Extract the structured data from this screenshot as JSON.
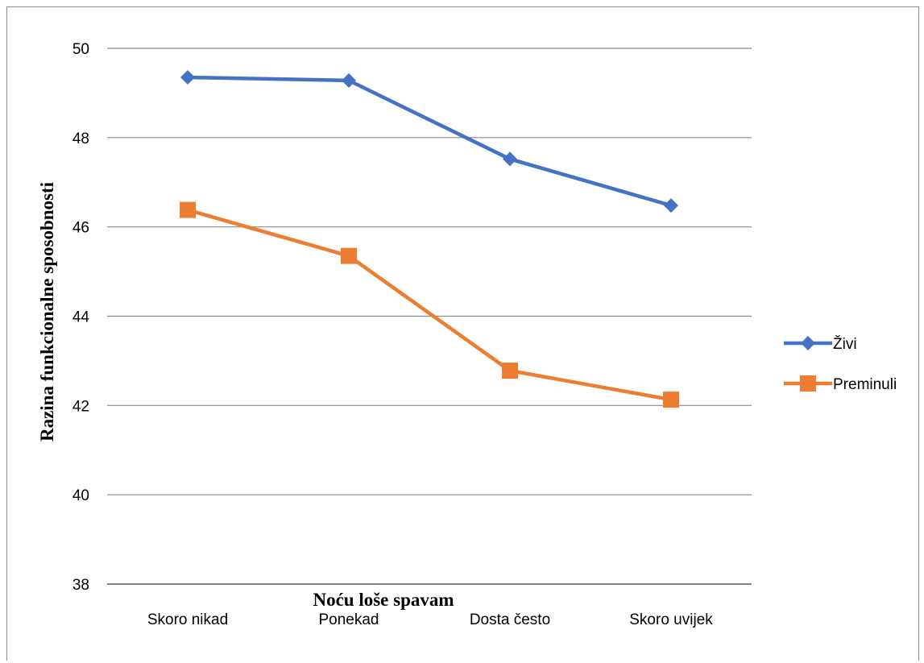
{
  "chart_data": {
    "type": "line",
    "title": "",
    "xlabel": "Noću loše spavam",
    "ylabel": "Razina funkcionalne sposobnosti",
    "categories": [
      "Skoro nikad",
      "Ponekad",
      "Dosta često",
      "Skoro uvijek"
    ],
    "ylim": [
      38,
      50
    ],
    "yticks": [
      38,
      40,
      42,
      44,
      46,
      48,
      50
    ],
    "grid": true,
    "legend_position": "right",
    "series": [
      {
        "name": "Živi",
        "values": [
          49.35,
          49.28,
          47.52,
          46.48
        ],
        "color": "#4472c4",
        "marker": "diamond"
      },
      {
        "name": "Preminuli",
        "values": [
          46.38,
          45.35,
          42.78,
          42.13
        ],
        "color": "#ed7d31",
        "marker": "square"
      }
    ]
  }
}
